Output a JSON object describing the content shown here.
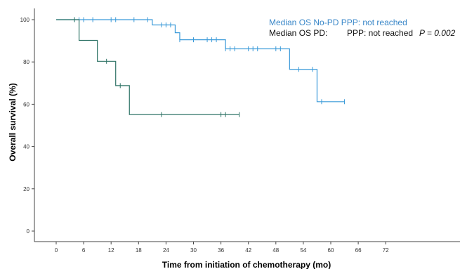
{
  "chart_data": {
    "type": "line",
    "subtype": "kaplan-meier",
    "xlabel": "Time from initiation of chemotherapy (mo)",
    "ylabel": "Overall survival (%)",
    "xlim": [
      -6,
      74
    ],
    "ylim": [
      -5,
      106
    ],
    "xticks": [
      0,
      6,
      12,
      18,
      24,
      30,
      36,
      42,
      48,
      54,
      60,
      66,
      72
    ],
    "yticks": [
      0,
      20,
      40,
      60,
      80,
      100
    ],
    "grid": false,
    "legend_position": "top-right",
    "annotations": {
      "line1": "Median OS No-PD PPP: not reached",
      "line2_label": "Median OS PD:",
      "line2_value": "PPP: not reached",
      "p_value": "P = 0.002"
    },
    "series": [
      {
        "color": "#3a9ad9",
        "steps": [
          [
            0,
            100
          ],
          [
            21,
            97.5
          ],
          [
            26,
            93.8
          ],
          [
            27,
            90.5
          ],
          [
            37,
            86.2
          ],
          [
            51,
            76.5
          ],
          [
            57,
            61.2
          ],
          [
            63,
            61.2
          ]
        ],
        "censored": [
          [
            4,
            100
          ],
          [
            5,
            100
          ],
          [
            6,
            100
          ],
          [
            8,
            100
          ],
          [
            12,
            100
          ],
          [
            13,
            100
          ],
          [
            17,
            100
          ],
          [
            20,
            100
          ],
          [
            23,
            97.5
          ],
          [
            24,
            97.5
          ],
          [
            25,
            97.5
          ],
          [
            27,
            90.5
          ],
          [
            30,
            90.5
          ],
          [
            33,
            90.5
          ],
          [
            34,
            90.5
          ],
          [
            35,
            90.5
          ],
          [
            37,
            86.2
          ],
          [
            38,
            86.2
          ],
          [
            39,
            86.2
          ],
          [
            42,
            86.2
          ],
          [
            43,
            86.2
          ],
          [
            44,
            86.2
          ],
          [
            48,
            86.2
          ],
          [
            49,
            86.2
          ],
          [
            53,
            76.5
          ],
          [
            56,
            76.5
          ],
          [
            58,
            61.2
          ],
          [
            63,
            61.2
          ]
        ]
      },
      {
        "color": "#2e7366",
        "steps": [
          [
            0,
            100
          ],
          [
            5,
            90.2
          ],
          [
            9,
            80.3
          ],
          [
            13,
            68.8
          ],
          [
            16,
            55.1
          ],
          [
            40,
            55.1
          ]
        ],
        "censored": [
          [
            4,
            100
          ],
          [
            11,
            80.3
          ],
          [
            14,
            68.8
          ],
          [
            23,
            55.1
          ],
          [
            36,
            55.1
          ],
          [
            37,
            55.1
          ],
          [
            40,
            55.1
          ]
        ]
      }
    ]
  }
}
